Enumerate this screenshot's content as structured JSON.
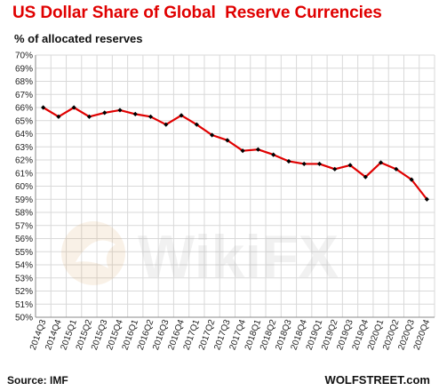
{
  "chart_data": {
    "type": "line",
    "title": "US Dollar Share of Global  Reserve Currencies",
    "ylabel": "% of allocated reserves",
    "x": [
      "2014Q3",
      "2014Q4",
      "2015Q1",
      "2015Q2",
      "2015Q3",
      "2015Q4",
      "2016Q1",
      "2016Q2",
      "2016Q3",
      "2016Q4",
      "2017Q1",
      "2017Q2",
      "2017Q3",
      "2017Q4",
      "2018Q1",
      "2018Q2",
      "2018Q3",
      "2018Q4",
      "2019Q1",
      "2019Q2",
      "2019Q3",
      "2019Q4",
      "2020Q1",
      "2020Q2",
      "2020Q3",
      "2020Q4"
    ],
    "series": [
      {
        "values": [
          66.0,
          65.3,
          66.0,
          65.3,
          65.6,
          65.8,
          65.5,
          65.3,
          64.7,
          65.4,
          64.7,
          63.9,
          63.5,
          62.7,
          62.8,
          62.4,
          61.9,
          61.7,
          61.7,
          61.3,
          61.6,
          60.7,
          61.8,
          61.3,
          60.5,
          59.0
        ]
      }
    ],
    "ylim": [
      50,
      70
    ],
    "yticks": [
      "50%",
      "51%",
      "52%",
      "53%",
      "54%",
      "55%",
      "56%",
      "57%",
      "58%",
      "59%",
      "60%",
      "61%",
      "62%",
      "63%",
      "64%",
      "65%",
      "66%",
      "67%",
      "68%",
      "69%",
      "70%"
    ],
    "grid": true,
    "line_color": "#e00000",
    "marker_color": "#000000",
    "grid_color": "#d9d9d9"
  },
  "source": "Source: IMF",
  "credit": "WOLFSTREET.com",
  "watermark": "WikiFX"
}
